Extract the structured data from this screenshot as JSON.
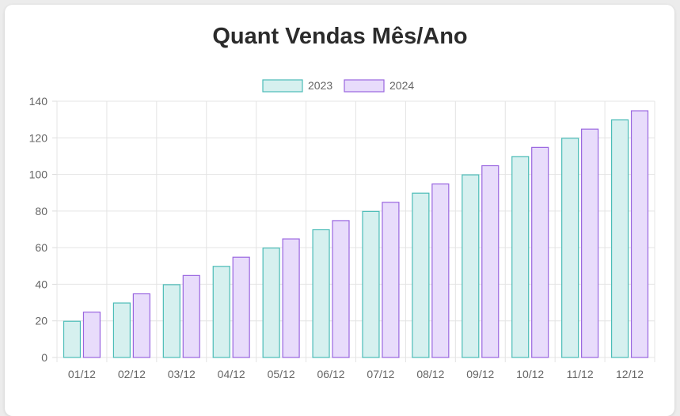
{
  "chart_data": {
    "type": "bar",
    "title": "Quant Vendas Mês/Ano",
    "categories": [
      "01/12",
      "02/12",
      "03/12",
      "04/12",
      "05/12",
      "06/12",
      "07/12",
      "08/12",
      "09/12",
      "10/12",
      "11/12",
      "12/12"
    ],
    "series": [
      {
        "name": "2023",
        "values": [
          20,
          30,
          40,
          50,
          60,
          70,
          80,
          90,
          100,
          110,
          120,
          130
        ],
        "fill": "#d6f0ef",
        "stroke": "#4bbcb7"
      },
      {
        "name": "2024",
        "values": [
          25,
          35,
          45,
          55,
          65,
          75,
          85,
          95,
          105,
          115,
          125,
          135
        ],
        "fill": "#e8dcfb",
        "stroke": "#9a66e0"
      }
    ],
    "ylim": [
      0,
      140
    ],
    "yticks": [
      "0",
      "20",
      "40",
      "60",
      "80",
      "100",
      "120",
      "140"
    ],
    "grid": true,
    "legend_position": "top"
  }
}
